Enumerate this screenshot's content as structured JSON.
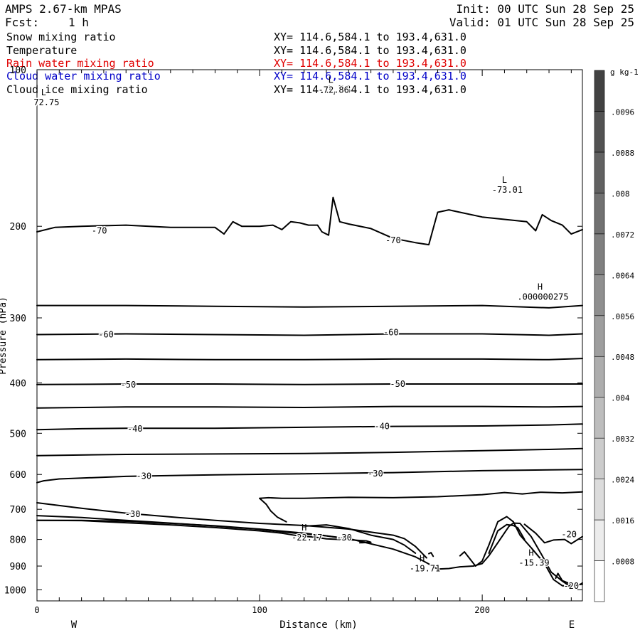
{
  "header": {
    "model": "AMPS 2.67-km MPAS",
    "init": "Init: 00 UTC Sun 28 Sep 25",
    "fcst_label": "Fcst:",
    "fcst_value": "1 h",
    "valid": "Valid: 01 UTC Sun 28 Sep 25"
  },
  "fields": [
    {
      "name": "Snow mixing ratio",
      "xy": "XY= 114.6,584.1 to 193.4,631.0",
      "color": "#000000"
    },
    {
      "name": "Temperature",
      "xy": "XY= 114.6,584.1 to 193.4,631.0",
      "color": "#000000"
    },
    {
      "name": "Rain water mixing ratio",
      "xy": "XY= 114.6,584.1 to 193.4,631.0",
      "color": "#e00000"
    },
    {
      "name": "Cloud water mixing ratio",
      "xy": "XY= 114.6,584.1 to 193.4,631.0",
      "color": "#0000c8"
    },
    {
      "name": "Cloud ice mixing ratio",
      "xy": "XY= 114.6,584.1 to 193.4,631.0",
      "color": "#000000"
    }
  ],
  "chart_data": {
    "type": "contour",
    "xlabel": "Distance (km)",
    "ylabel": "Pressure (hPa)",
    "xlim": [
      0,
      245
    ],
    "ylim": [
      1050,
      100
    ],
    "x_ticks": [
      0,
      100,
      200
    ],
    "y_ticks": [
      100,
      200,
      300,
      400,
      500,
      600,
      700,
      800,
      900,
      1000
    ],
    "y_scale": "log",
    "x_end_labels": {
      "left": "W",
      "right": "E"
    },
    "contour_labels": [
      {
        "text": "-70",
        "x": 28,
        "p": 204
      },
      {
        "text": "-70",
        "x": 160,
        "p": 213
      },
      {
        "text": "-60",
        "x": 31,
        "p": 323
      },
      {
        "text": "-60",
        "x": 159,
        "p": 320
      },
      {
        "text": "-50",
        "x": 41,
        "p": 403
      },
      {
        "text": "-50",
        "x": 162,
        "p": 402
      },
      {
        "text": "-40",
        "x": 44,
        "p": 490
      },
      {
        "text": "-40",
        "x": 155,
        "p": 485
      },
      {
        "text": "-30",
        "x": 48,
        "p": 604
      },
      {
        "text": "-30",
        "x": 152,
        "p": 598
      },
      {
        "text": "-30",
        "x": 43,
        "p": 715
      },
      {
        "text": "-30",
        "x": 138,
        "p": 793
      },
      {
        "text": "-20",
        "x": 239,
        "p": 782
      },
      {
        "text": "-20",
        "x": 240,
        "p": 983
      }
    ],
    "extrema": [
      {
        "kind": "L",
        "value": "72.75",
        "x": 3,
        "p": 112
      },
      {
        "kind": "L",
        "value": "-72.86",
        "x": 132,
        "p": 106
      },
      {
        "kind": "L",
        "value": "-73.01",
        "x": 210,
        "p": 165
      },
      {
        "kind": "H",
        "value": ".000000275",
        "x": 226,
        "p": 265
      },
      {
        "kind": "H",
        "value": "-22.17",
        "x": 120,
        "p": 769
      },
      {
        "kind": "H",
        "value": "-19.71",
        "x": 173,
        "p": 882
      },
      {
        "kind": "H",
        "value": "-15.39",
        "x": 222,
        "p": 860
      }
    ],
    "temperature_contours": [
      {
        "x": [
          0,
          8,
          20,
          40,
          60,
          80,
          84,
          88,
          92,
          100,
          106,
          110,
          114,
          118,
          122,
          126,
          128,
          131,
          133,
          136,
          140,
          150,
          160,
          170,
          176,
          178,
          180,
          185,
          190,
          200,
          210,
          220,
          224,
          227,
          231,
          236,
          240,
          245
        ],
        "p": [
          205,
          201,
          200,
          199,
          201,
          201,
          207,
          196,
          200,
          200,
          199,
          203,
          196,
          197,
          199,
          199,
          205,
          208,
          176,
          196,
          198,
          202,
          211,
          215,
          217,
          202,
          188,
          186,
          188,
          192,
          194,
          196,
          204,
          190,
          195,
          199,
          207,
          203
        ]
      },
      {
        "x": [
          0,
          40,
          80,
          120,
          160,
          200,
          230,
          245
        ],
        "p": [
          284,
          284,
          285,
          286,
          285,
          284,
          287,
          284
        ]
      },
      {
        "x": [
          0,
          40,
          80,
          120,
          160,
          200,
          230,
          245
        ],
        "p": [
          323,
          322,
          323,
          324,
          322,
          322,
          324,
          322
        ]
      },
      {
        "x": [
          0,
          40,
          80,
          120,
          160,
          200,
          230,
          245
        ],
        "p": [
          361,
          360,
          361,
          361,
          360,
          360,
          361,
          359
        ]
      },
      {
        "x": [
          0,
          40,
          80,
          120,
          160,
          200,
          230,
          245
        ],
        "p": [
          403,
          402,
          402,
          403,
          402,
          402,
          402,
          402
        ]
      },
      {
        "x": [
          0,
          40,
          80,
          120,
          160,
          200,
          230,
          245
        ],
        "p": [
          447,
          445,
          445,
          446,
          444,
          444,
          445,
          444
        ]
      },
      {
        "x": [
          0,
          20,
          40,
          80,
          120,
          160,
          200,
          230,
          245
        ],
        "p": [
          492,
          490,
          489,
          489,
          487,
          485,
          484,
          482,
          480
        ]
      },
      {
        "x": [
          0,
          40,
          80,
          120,
          160,
          200,
          230,
          245
        ],
        "p": [
          552,
          549,
          548,
          547,
          544,
          540,
          537,
          535
        ]
      },
      {
        "x": [
          0,
          3,
          10,
          40,
          80,
          120,
          160,
          200,
          230,
          245
        ],
        "p": [
          622,
          617,
          612,
          605,
          601,
          598,
          595,
          590,
          588,
          587
        ]
      },
      {
        "x": [
          100,
          104,
          110,
          120,
          140,
          160,
          180,
          200,
          210,
          218,
          226,
          236,
          245
        ],
        "p": [
          667,
          665,
          667,
          667,
          664,
          665,
          662,
          656,
          650,
          654,
          649,
          651,
          648
        ]
      },
      {
        "x": [
          100,
          103,
          105,
          108,
          112
        ],
        "p": [
          667,
          685,
          705,
          725,
          740
        ]
      },
      {
        "x": [
          0,
          20,
          40,
          60,
          80,
          100,
          110,
          118,
          125,
          130,
          136,
          140
        ],
        "p": [
          735,
          736,
          743,
          750,
          759,
          770,
          778,
          788,
          792,
          798,
          800,
          785
        ]
      },
      {
        "x": [
          0,
          20,
          40,
          60,
          80,
          100,
          112,
          120,
          128,
          134,
          140,
          148,
          150,
          145
        ],
        "p": [
          720,
          726,
          735,
          744,
          754,
          765,
          775,
          781,
          785,
          792,
          801,
          805,
          810,
          812
        ]
      },
      {
        "x": [
          0,
          20,
          40,
          60,
          80,
          100,
          120,
          140,
          160,
          165,
          170,
          175
        ],
        "p": [
          680,
          697,
          712,
          724,
          735,
          745,
          752,
          764,
          785,
          797,
          825,
          868
        ]
      },
      {
        "x": [
          121,
          130,
          140,
          150,
          160,
          165,
          170
        ],
        "p": [
          754,
          750,
          762,
          785,
          800,
          820,
          850
        ]
      },
      {
        "x": [
          176,
          177,
          178
        ],
        "p": [
          852,
          848,
          862
        ]
      },
      {
        "x": [
          0,
          20,
          40,
          60,
          80,
          100,
          120,
          140,
          160,
          170,
          175,
          180,
          185,
          190,
          196,
          200,
          203,
          208,
          212,
          214,
          217,
          222,
          227,
          231,
          236,
          238,
          241,
          244,
          245
        ],
        "p": [
          735,
          735,
          738,
          745,
          753,
          764,
          778,
          797,
          835,
          864,
          887,
          912,
          910,
          903,
          900,
          890,
          860,
          800,
          755,
          744,
          745,
          790,
          860,
          925,
          962,
          975,
          978,
          976,
          970
        ]
      },
      {
        "x": [
          190,
          192,
          197,
          200,
          203,
          207,
          211,
          214,
          217,
          222,
          228,
          232,
          236,
          240,
          245
        ],
        "p": [
          860,
          845,
          900,
          880,
          820,
          740,
          723,
          740,
          785,
          830,
          890,
          955,
          982,
          982,
          975
        ]
      },
      {
        "x": [
          203,
          207,
          211,
          214,
          216,
          219
        ],
        "p": [
          850,
          770,
          749,
          752,
          760,
          800
        ]
      },
      {
        "x": [
          219,
          224,
          228,
          232,
          237,
          240,
          245
        ],
        "p": [
          748,
          778,
          812,
          802,
          800,
          815,
          790
        ]
      },
      {
        "x": [
          233,
          234,
          236,
          240
        ],
        "p": [
          950,
          930,
          960,
          975
        ]
      }
    ],
    "rain_water_contours": [],
    "cloud_water_contours": [],
    "colorbar": {
      "units": "g kg-1",
      "levels": [
        ".0008",
        ".0016",
        ".0024",
        ".0032",
        ".004",
        ".0048",
        ".0056",
        ".0064",
        ".0072",
        ".008",
        ".0088",
        ".0096"
      ],
      "colors": [
        "#ffffff",
        "#ececec",
        "#dcdcdc",
        "#cccccc",
        "#bdbdbd",
        "#adadad",
        "#9e9e9e",
        "#8f8f8f",
        "#808080",
        "#717171",
        "#616161",
        "#525252",
        "#424242"
      ]
    }
  }
}
